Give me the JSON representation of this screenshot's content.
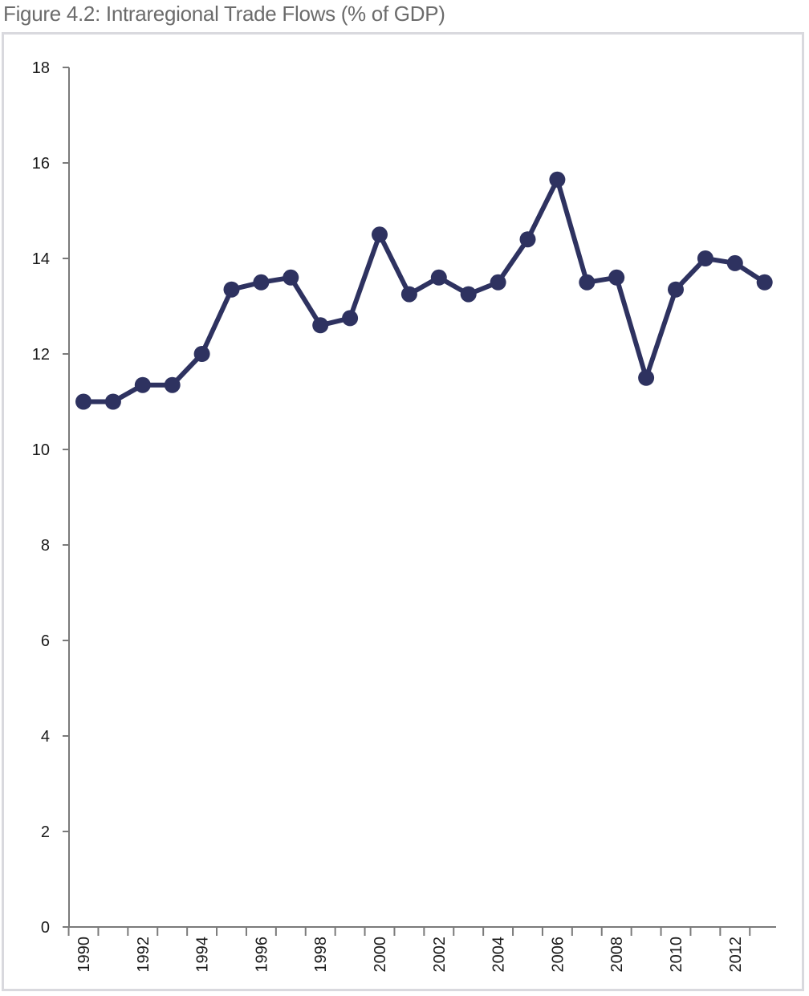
{
  "figure": {
    "title": "Figure 4.2: Intraregional Trade Flows (% of GDP)"
  },
  "chart_data": {
    "type": "line",
    "title": "Figure 4.2: Intraregional Trade Flows (% of GDP)",
    "xlabel": "",
    "ylabel": "",
    "ylim": [
      0,
      18
    ],
    "xlim": [
      1990,
      2013
    ],
    "y_ticks": [
      "0",
      "2",
      "4",
      "6",
      "8",
      "10",
      "12",
      "14",
      "16",
      "18"
    ],
    "x_tick_labels": [
      "1990",
      "1992",
      "1994",
      "1996",
      "1998",
      "2000",
      "2002",
      "2004",
      "2006",
      "2008",
      "2010",
      "2012"
    ],
    "grid": false,
    "legend": "none",
    "color": "#2e3260",
    "x": [
      1990,
      1991,
      1992,
      1993,
      1994,
      1995,
      1996,
      1997,
      1998,
      1999,
      2000,
      2001,
      2002,
      2003,
      2004,
      2005,
      2006,
      2007,
      2008,
      2009,
      2010,
      2011,
      2012,
      2013
    ],
    "series": [
      {
        "values": [
          11.0,
          11.0,
          11.35,
          11.35,
          12.0,
          13.35,
          13.5,
          13.6,
          12.6,
          12.75,
          14.5,
          13.25,
          13.6,
          13.25,
          13.5,
          14.4,
          15.65,
          13.5,
          13.6,
          11.5,
          13.35,
          14.0,
          13.9,
          13.5
        ]
      }
    ]
  }
}
